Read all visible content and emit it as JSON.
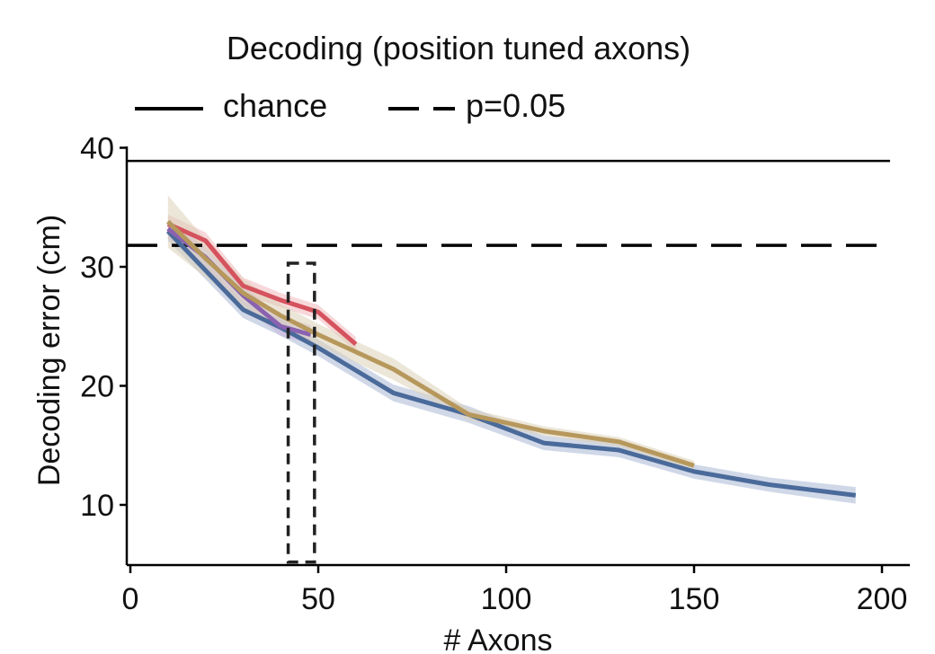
{
  "chart_data": {
    "type": "line",
    "title": "Decoding (position tuned axons)",
    "xlabel": "# Axons",
    "ylabel": "Decoding error (cm)",
    "xlim": [
      0,
      205
    ],
    "ylim": [
      5,
      41
    ],
    "xticks": [
      0,
      50,
      100,
      150,
      200
    ],
    "yticks": [
      10,
      20,
      30,
      40
    ],
    "grid": false,
    "legend": {
      "placement": "top-left",
      "entries": [
        {
          "label": "chance",
          "style": "solid"
        },
        {
          "label": "p=0.05",
          "style": "dashed"
        }
      ]
    },
    "reference_lines": [
      {
        "label": "chance",
        "y": 38.9,
        "style": "solid",
        "color": "#000000"
      },
      {
        "label": "p=0.05",
        "y": 31.8,
        "style": "dashed",
        "color": "#000000"
      }
    ],
    "highlight_box": {
      "x": [
        42,
        49
      ],
      "y": [
        5.2,
        30.3
      ],
      "style": "dashed"
    },
    "series": [
      {
        "color": "#4a6a9a",
        "band_color": "#aab8d6",
        "x": [
          10,
          30,
          40,
          50,
          70,
          90,
          110,
          130,
          150,
          170,
          193
        ],
        "y": [
          33.0,
          26.4,
          24.9,
          23.2,
          19.4,
          17.6,
          15.2,
          14.6,
          12.8,
          11.7,
          10.8
        ],
        "err": [
          0.8,
          0.7,
          0.7,
          0.7,
          0.7,
          0.7,
          0.6,
          0.6,
          0.6,
          0.6,
          0.7
        ]
      },
      {
        "color": "#d5535e",
        "band_color": "#f0b8bc",
        "x": [
          10,
          20,
          30,
          40,
          50,
          60
        ],
        "y": [
          33.6,
          32.2,
          28.4,
          27.2,
          26.2,
          23.5
        ],
        "err": [
          0.8,
          0.7,
          0.7,
          0.6,
          0.6,
          0.6
        ]
      },
      {
        "color": "#8a62b0",
        "band_color": "#c8b4dc",
        "x": [
          10,
          20,
          30,
          40,
          48
        ],
        "y": [
          33.2,
          30.8,
          27.6,
          25.0,
          24.3
        ],
        "err": [
          0.8,
          0.8,
          0.8,
          0.8,
          0.8
        ]
      },
      {
        "color": "#b7985c",
        "band_color": "#ddd2b8",
        "x": [
          10,
          20,
          30,
          40,
          50,
          70,
          90,
          110,
          130,
          150
        ],
        "y": [
          33.8,
          30.7,
          27.8,
          25.9,
          24.3,
          21.4,
          17.6,
          16.2,
          15.3,
          13.3
        ],
        "err": [
          2.2,
          1.6,
          1.2,
          1.0,
          0.9,
          0.9,
          0.5,
          0.4,
          0.4,
          0.4
        ]
      }
    ]
  }
}
